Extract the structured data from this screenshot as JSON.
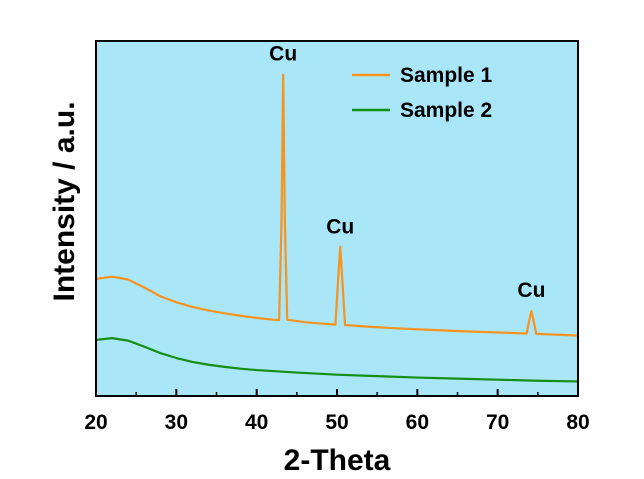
{
  "chart_data": {
    "type": "line",
    "title": "",
    "xlabel": "2-Theta",
    "ylabel": "Intensity / a.u.",
    "xlim": [
      20,
      80
    ],
    "ylim": [
      0,
      100
    ],
    "xticks": [
      20,
      30,
      40,
      50,
      60,
      70,
      80
    ],
    "yticks_shown": false,
    "grid": false,
    "legend_position": "top-right",
    "plot_background": "#a8e6f8",
    "series": [
      {
        "name": "Sample 1",
        "color": "#f7931e",
        "points": [
          [
            20,
            33.0
          ],
          [
            22,
            33.6
          ],
          [
            24,
            32.8
          ],
          [
            26,
            30.6
          ],
          [
            28,
            28.1
          ],
          [
            30,
            26.4
          ],
          [
            32,
            25.1
          ],
          [
            34,
            24.1
          ],
          [
            36,
            23.3
          ],
          [
            38,
            22.6
          ],
          [
            40,
            22.0
          ],
          [
            42,
            21.5
          ],
          [
            42.8,
            21.4
          ],
          [
            43.1,
            50
          ],
          [
            43.3,
            90.5
          ],
          [
            43.5,
            50
          ],
          [
            43.8,
            21.5
          ],
          [
            46,
            20.8
          ],
          [
            48,
            20.4
          ],
          [
            49.8,
            20.1
          ],
          [
            50.2,
            35
          ],
          [
            50.4,
            42.0
          ],
          [
            50.6,
            35
          ],
          [
            51.0,
            20.0
          ],
          [
            54,
            19.5
          ],
          [
            58,
            19.0
          ],
          [
            62,
            18.6
          ],
          [
            66,
            18.2
          ],
          [
            70,
            17.9
          ],
          [
            73.6,
            17.6
          ],
          [
            74.0,
            22
          ],
          [
            74.2,
            23.9
          ],
          [
            74.4,
            22
          ],
          [
            74.8,
            17.5
          ],
          [
            77,
            17.3
          ],
          [
            80,
            17.0
          ]
        ]
      },
      {
        "name": "Sample 2",
        "color": "#148f14",
        "points": [
          [
            20,
            15.8
          ],
          [
            22,
            16.3
          ],
          [
            24,
            15.6
          ],
          [
            26,
            13.9
          ],
          [
            28,
            12.1
          ],
          [
            30,
            10.7
          ],
          [
            32,
            9.6
          ],
          [
            34,
            8.8
          ],
          [
            36,
            8.2
          ],
          [
            38,
            7.7
          ],
          [
            40,
            7.3
          ],
          [
            45,
            6.6
          ],
          [
            50,
            6.0
          ],
          [
            55,
            5.6
          ],
          [
            60,
            5.2
          ],
          [
            65,
            4.9
          ],
          [
            70,
            4.6
          ],
          [
            75,
            4.3
          ],
          [
            80,
            4.1
          ]
        ]
      }
    ],
    "annotations": [
      {
        "text": "Cu",
        "x": 43.3,
        "y": 94.5
      },
      {
        "text": "Cu",
        "x": 50.4,
        "y": 45.8
      },
      {
        "text": "Cu",
        "x": 74.2,
        "y": 27.9
      }
    ]
  }
}
